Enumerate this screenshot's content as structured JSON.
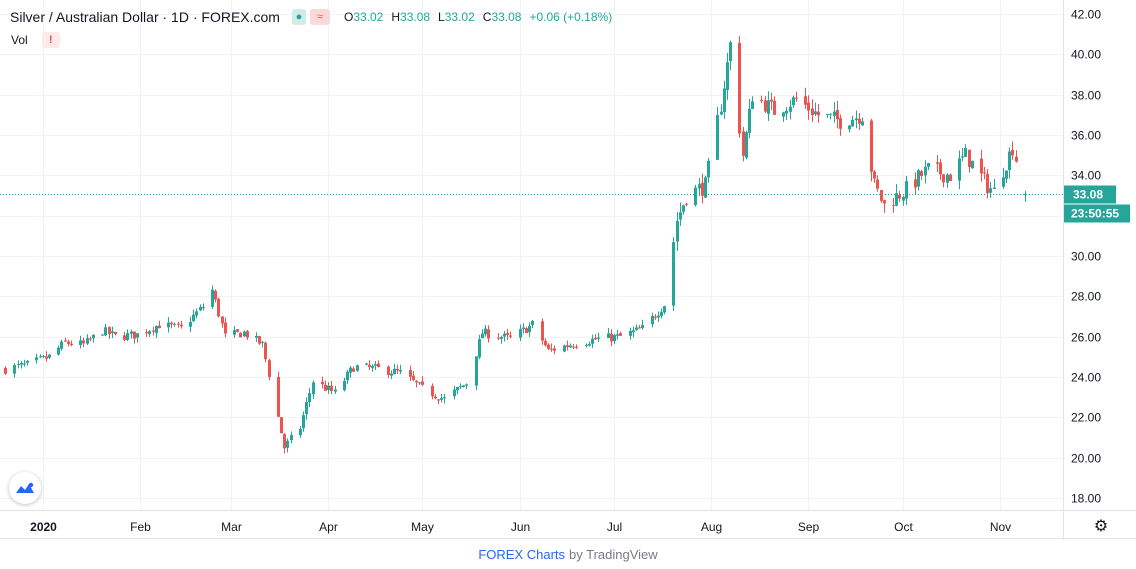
{
  "legend": {
    "title": "Silver / Australian Dollar · 1D · FOREX.com",
    "open_label": "O",
    "open": "33.02",
    "high_label": "H",
    "high": "33.08",
    "low_label": "L",
    "low": "33.02",
    "close_label": "C",
    "close": "33.08",
    "change": "+0.06 (+0.18%)",
    "vol_label": "Vol",
    "vol_warning": "!"
  },
  "price_tag": {
    "last_price": "33.08",
    "countdown": "23:50:55"
  },
  "footer": {
    "brand": "FOREX Charts",
    "by": "by TradingView"
  },
  "colors": {
    "up": "#26a69a",
    "down": "#ef5350",
    "grid": "#f0f3fa",
    "axis_text": "#131722",
    "price_line": "#26a69a"
  },
  "icons": {
    "settings": "gear-icon",
    "logo": "tradingview-logo-icon",
    "indicator_toggle": "eye-icon",
    "compare": "wave-icon"
  },
  "chart_data": {
    "type": "candlestick",
    "title": "Silver / Australian Dollar · 1D · FOREX.com",
    "y_ticks": [
      "42.00",
      "40.00",
      "38.00",
      "36.00",
      "34.00",
      "32.00",
      "30.00",
      "28.00",
      "26.00",
      "24.00",
      "22.00",
      "20.00",
      "18.00"
    ],
    "ylim": [
      17.4,
      42.7
    ],
    "x_ticks": [
      "2020",
      "Feb",
      "Mar",
      "Apr",
      "May",
      "Jun",
      "Jul",
      "Aug",
      "Sep",
      "Oct",
      "Nov"
    ],
    "x_tick_dates": [
      "2020-01-01",
      "2020-02-01",
      "2020-03-01",
      "2020-04-01",
      "2020-05-01",
      "2020-06-01",
      "2020-07-01",
      "2020-08-01",
      "2020-09-01",
      "2020-10-01",
      "2020-11-01"
    ],
    "date_range": [
      "2019-12-20",
      "2020-11-09"
    ],
    "last_price": 33.08,
    "close_path": [
      [
        "2019-12-20",
        24.4
      ],
      [
        "2019-12-27",
        24.6
      ],
      [
        "2020-01-03",
        25.0
      ],
      [
        "2020-01-08",
        25.7
      ],
      [
        "2020-01-14",
        25.6
      ],
      [
        "2020-01-20",
        26.3
      ],
      [
        "2020-01-24",
        26.0
      ],
      [
        "2020-01-31",
        26.1
      ],
      [
        "2020-02-07",
        26.6
      ],
      [
        "2020-02-14",
        26.4
      ],
      [
        "2020-02-21",
        27.5
      ],
      [
        "2020-02-24",
        28.3
      ],
      [
        "2020-02-28",
        26.0
      ],
      [
        "2020-03-05",
        26.2
      ],
      [
        "2020-03-11",
        25.6
      ],
      [
        "2020-03-16",
        22.0
      ],
      [
        "2020-03-18",
        20.5
      ],
      [
        "2020-03-23",
        21.5
      ],
      [
        "2020-03-27",
        23.8
      ],
      [
        "2020-04-03",
        23.2
      ],
      [
        "2020-04-09",
        24.5
      ],
      [
        "2020-04-17",
        24.4
      ],
      [
        "2020-04-24",
        24.2
      ],
      [
        "2020-05-01",
        23.4
      ],
      [
        "2020-05-08",
        22.9
      ],
      [
        "2020-05-15",
        23.7
      ],
      [
        "2020-05-20",
        26.2
      ],
      [
        "2020-05-29",
        25.9
      ],
      [
        "2020-06-05",
        26.6
      ],
      [
        "2020-06-10",
        25.3
      ],
      [
        "2020-06-19",
        25.7
      ],
      [
        "2020-06-26",
        25.9
      ],
      [
        "2020-07-03",
        26.0
      ],
      [
        "2020-07-10",
        26.4
      ],
      [
        "2020-07-17",
        27.6
      ],
      [
        "2020-07-21",
        31.8
      ],
      [
        "2020-07-24",
        33.0
      ],
      [
        "2020-07-30",
        33.5
      ],
      [
        "2020-08-04",
        37.5
      ],
      [
        "2020-08-07",
        40.5
      ],
      [
        "2020-08-11",
        35.0
      ],
      [
        "2020-08-14",
        38.0
      ],
      [
        "2020-08-21",
        37.2
      ],
      [
        "2020-08-28",
        37.8
      ],
      [
        "2020-09-04",
        37.0
      ],
      [
        "2020-09-11",
        36.7
      ],
      [
        "2020-09-18",
        37.0
      ],
      [
        "2020-09-22",
        33.5
      ],
      [
        "2020-09-25",
        32.5
      ],
      [
        "2020-10-02",
        33.3
      ],
      [
        "2020-10-09",
        34.3
      ],
      [
        "2020-10-16",
        34.0
      ],
      [
        "2020-10-21",
        35.0
      ],
      [
        "2020-10-28",
        33.5
      ],
      [
        "2020-10-30",
        33.2
      ],
      [
        "2020-11-05",
        35.4
      ],
      [
        "2020-11-09",
        33.08
      ]
    ]
  }
}
